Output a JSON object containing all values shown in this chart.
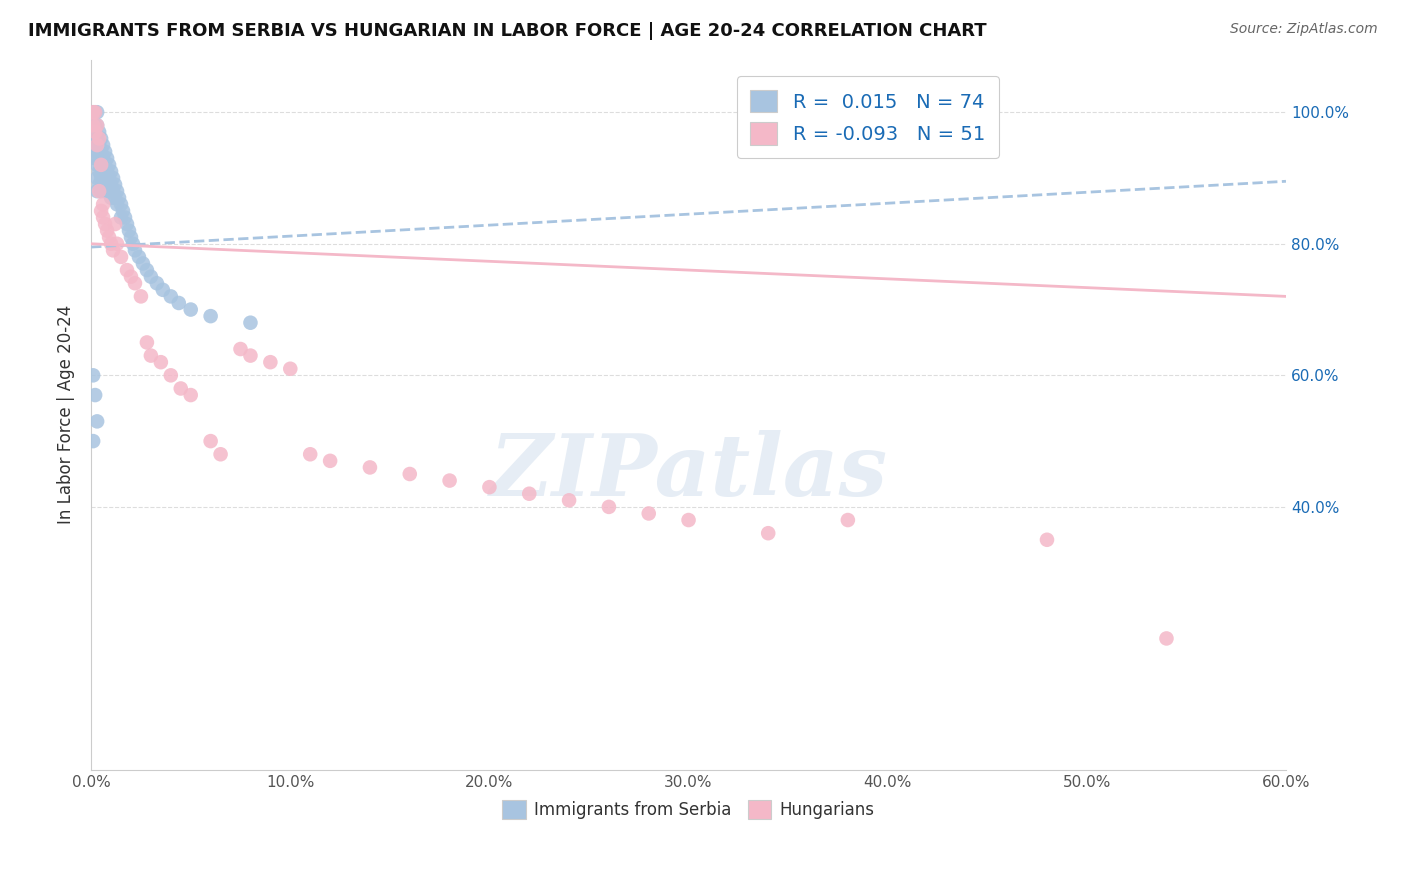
{
  "title": "IMMIGRANTS FROM SERBIA VS HUNGARIAN IN LABOR FORCE | AGE 20-24 CORRELATION CHART",
  "source": "Source: ZipAtlas.com",
  "ylabel": "In Labor Force | Age 20-24",
  "xlim": [
    0.0,
    0.6
  ],
  "ylim": [
    0.0,
    1.08
  ],
  "xtick_vals": [
    0.0,
    0.1,
    0.2,
    0.3,
    0.4,
    0.5,
    0.6
  ],
  "ytick_vals": [
    0.4,
    0.6,
    0.8,
    1.0
  ],
  "serbia_color": "#a8c4e0",
  "hungary_color": "#f4b8c8",
  "serbia_R": 0.015,
  "serbia_N": 74,
  "hungary_R": -0.093,
  "hungary_N": 51,
  "legend_color": "#1a6bb5",
  "watermark_text": "ZIPatlas",
  "watermark_color": "#c8d8ea",
  "background_color": "#ffffff",
  "grid_color": "#dddddd",
  "serbia_x": [
    0.001,
    0.001,
    0.001,
    0.001,
    0.002,
    0.002,
    0.002,
    0.002,
    0.002,
    0.003,
    0.003,
    0.003,
    0.003,
    0.003,
    0.003,
    0.003,
    0.004,
    0.004,
    0.004,
    0.004,
    0.004,
    0.005,
    0.005,
    0.005,
    0.005,
    0.005,
    0.006,
    0.006,
    0.006,
    0.006,
    0.007,
    0.007,
    0.007,
    0.007,
    0.008,
    0.008,
    0.008,
    0.009,
    0.009,
    0.009,
    0.01,
    0.01,
    0.01,
    0.011,
    0.011,
    0.012,
    0.012,
    0.013,
    0.013,
    0.014,
    0.015,
    0.015,
    0.016,
    0.017,
    0.018,
    0.019,
    0.02,
    0.021,
    0.022,
    0.024,
    0.026,
    0.028,
    0.03,
    0.033,
    0.036,
    0.04,
    0.044,
    0.05,
    0.06,
    0.08,
    0.001,
    0.002,
    0.003,
    0.001
  ],
  "serbia_y": [
    1.0,
    0.98,
    0.97,
    0.95,
    1.0,
    0.98,
    0.97,
    0.95,
    0.93,
    1.0,
    0.98,
    0.96,
    0.94,
    0.92,
    0.9,
    0.88,
    0.97,
    0.95,
    0.93,
    0.91,
    0.89,
    0.96,
    0.94,
    0.92,
    0.9,
    0.88,
    0.95,
    0.93,
    0.91,
    0.89,
    0.94,
    0.92,
    0.9,
    0.88,
    0.93,
    0.91,
    0.89,
    0.92,
    0.9,
    0.88,
    0.91,
    0.89,
    0.87,
    0.9,
    0.88,
    0.89,
    0.87,
    0.88,
    0.86,
    0.87,
    0.86,
    0.84,
    0.85,
    0.84,
    0.83,
    0.82,
    0.81,
    0.8,
    0.79,
    0.78,
    0.77,
    0.76,
    0.75,
    0.74,
    0.73,
    0.72,
    0.71,
    0.7,
    0.69,
    0.68,
    0.6,
    0.57,
    0.53,
    0.5
  ],
  "hungary_x": [
    0.001,
    0.001,
    0.002,
    0.002,
    0.003,
    0.003,
    0.004,
    0.004,
    0.005,
    0.005,
    0.006,
    0.006,
    0.007,
    0.008,
    0.009,
    0.01,
    0.011,
    0.012,
    0.013,
    0.015,
    0.018,
    0.02,
    0.022,
    0.025,
    0.028,
    0.03,
    0.035,
    0.04,
    0.045,
    0.05,
    0.06,
    0.065,
    0.075,
    0.08,
    0.09,
    0.1,
    0.11,
    0.12,
    0.14,
    0.16,
    0.18,
    0.2,
    0.22,
    0.24,
    0.26,
    0.28,
    0.3,
    0.34,
    0.38,
    0.48,
    0.54
  ],
  "hungary_y": [
    1.0,
    0.98,
    1.0,
    0.97,
    0.98,
    0.95,
    0.96,
    0.88,
    0.92,
    0.85,
    0.86,
    0.84,
    0.83,
    0.82,
    0.81,
    0.8,
    0.79,
    0.83,
    0.8,
    0.78,
    0.76,
    0.75,
    0.74,
    0.72,
    0.65,
    0.63,
    0.62,
    0.6,
    0.58,
    0.57,
    0.5,
    0.48,
    0.64,
    0.63,
    0.62,
    0.61,
    0.48,
    0.47,
    0.46,
    0.45,
    0.44,
    0.43,
    0.42,
    0.41,
    0.4,
    0.39,
    0.38,
    0.36,
    0.38,
    0.35,
    0.2
  ],
  "serbia_trend": [
    0.0,
    0.6
  ],
  "serbia_trend_y": [
    0.795,
    0.895
  ],
  "hungary_trend": [
    0.0,
    0.6
  ],
  "hungary_trend_y": [
    0.8,
    0.72
  ]
}
